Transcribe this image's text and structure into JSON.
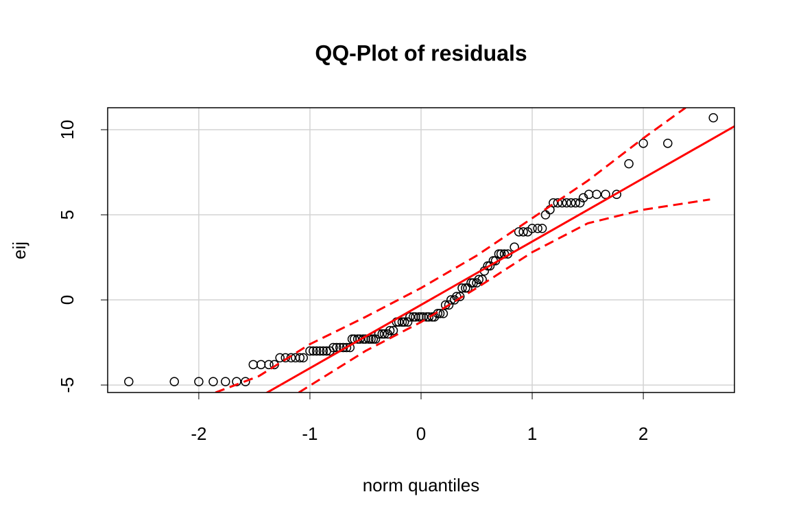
{
  "chart_data": {
    "type": "scatter",
    "title": "QQ-Plot of residuals",
    "x_label": "norm quantiles",
    "y_label": "eij",
    "xlim": [
      -2.82,
      2.82
    ],
    "ylim": [
      -5.44,
      11.29
    ],
    "xticks": [
      -2,
      -1,
      0,
      1,
      2
    ],
    "yticks": [
      -5,
      0,
      5,
      10
    ],
    "grid": true,
    "series": [
      {
        "kind": "points",
        "color": "#000000",
        "x": [
          -2.63,
          -2.22,
          -2.0,
          -1.87,
          -1.76,
          -1.66,
          -1.58,
          -1.51,
          -1.44,
          -1.37,
          -1.32,
          -1.27,
          -1.22,
          -1.17,
          -1.13,
          -1.09,
          -1.06,
          -1.0,
          -0.97,
          -0.94,
          -0.91,
          -0.88,
          -0.85,
          -0.82,
          -0.79,
          -0.76,
          -0.73,
          -0.7,
          -0.67,
          -0.64,
          -0.62,
          -0.6,
          -0.57,
          -0.55,
          -0.52,
          -0.5,
          -0.47,
          -0.45,
          -0.43,
          -0.41,
          -0.38,
          -0.35,
          -0.33,
          -0.3,
          -0.28,
          -0.25,
          -0.22,
          -0.2,
          -0.17,
          -0.15,
          -0.12,
          -0.1,
          -0.07,
          -0.05,
          -0.02,
          0.0,
          0.02,
          0.05,
          0.07,
          0.1,
          0.12,
          0.15,
          0.17,
          0.2,
          0.22,
          0.25,
          0.27,
          0.3,
          0.32,
          0.35,
          0.37,
          0.4,
          0.42,
          0.45,
          0.47,
          0.5,
          0.52,
          0.55,
          0.57,
          0.6,
          0.62,
          0.65,
          0.67,
          0.7,
          0.72,
          0.75,
          0.78,
          0.84,
          0.88,
          0.92,
          0.96,
          1.0,
          1.05,
          1.09,
          1.12,
          1.16,
          1.19,
          1.23,
          1.27,
          1.31,
          1.35,
          1.39,
          1.43,
          1.46,
          1.51,
          1.58,
          1.66,
          1.76,
          1.87,
          2.0,
          2.22,
          2.63
        ],
        "y": [
          -4.8,
          -4.8,
          -4.8,
          -4.8,
          -4.8,
          -4.8,
          -4.8,
          -3.8,
          -3.8,
          -3.8,
          -3.8,
          -3.4,
          -3.4,
          -3.4,
          -3.4,
          -3.4,
          -3.4,
          -3.0,
          -3.0,
          -3.0,
          -3.0,
          -3.0,
          -3.0,
          -3.0,
          -2.8,
          -2.8,
          -2.8,
          -2.8,
          -2.8,
          -2.8,
          -2.3,
          -2.3,
          -2.3,
          -2.3,
          -2.3,
          -2.3,
          -2.3,
          -2.3,
          -2.3,
          -2.3,
          -2.0,
          -2.0,
          -2.0,
          -2.0,
          -1.8,
          -1.8,
          -1.3,
          -1.3,
          -1.3,
          -1.3,
          -1.3,
          -1.0,
          -1.0,
          -1.0,
          -1.0,
          -1.0,
          -1.0,
          -1.0,
          -1.0,
          -1.0,
          -1.0,
          -0.8,
          -0.8,
          -0.8,
          -0.3,
          -0.3,
          0.0,
          0.0,
          0.2,
          0.2,
          0.7,
          0.7,
          0.7,
          1.0,
          1.0,
          1.0,
          1.2,
          1.2,
          1.7,
          2.0,
          2.0,
          2.3,
          2.3,
          2.7,
          2.7,
          2.7,
          2.7,
          3.1,
          4.0,
          4.0,
          4.0,
          4.2,
          4.2,
          4.2,
          5.0,
          5.3,
          5.7,
          5.7,
          5.7,
          5.7,
          5.7,
          5.7,
          5.7,
          6.0,
          6.2,
          6.2,
          6.2,
          6.2,
          8.0,
          9.2,
          9.2,
          10.7
        ]
      },
      {
        "kind": "line",
        "color": "#ff0000",
        "x": [
          -2.82,
          2.82
        ],
        "y": [
          -10.78,
          10.2
        ]
      },
      {
        "kind": "dashed",
        "color": "#ff0000",
        "x": [
          -1.85,
          -1.46,
          -1.0,
          -0.5,
          0.0,
          0.5,
          1.0,
          1.5,
          2.0,
          2.38
        ],
        "y": [
          -5.44,
          -4.48,
          -2.6,
          -1.0,
          0.7,
          2.6,
          4.8,
          7.0,
          9.5,
          11.29
        ]
      },
      {
        "kind": "dashed",
        "color": "#ff0000",
        "x": [
          -1.1,
          -0.5,
          0.0,
          0.5,
          1.0,
          1.5,
          2.0,
          2.6
        ],
        "y": [
          -5.44,
          -3.0,
          -1.3,
          0.7,
          2.8,
          4.5,
          5.3,
          5.9
        ]
      }
    ]
  }
}
